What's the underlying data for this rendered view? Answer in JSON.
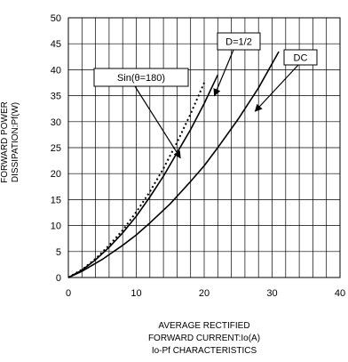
{
  "chart_data": {
    "type": "line",
    "title": "Io-Pf CHARACTERISTICS",
    "xlabel_lines": [
      "AVERAGE RECTIFIED",
      "FORWARD CURRENT:Io(A)"
    ],
    "ylabel_lines": [
      "FORWARD POWER",
      "DISSIPATION:Pf(W)"
    ],
    "xlim": [
      0,
      40
    ],
    "ylim": [
      0,
      50
    ],
    "x_ticks": [
      "0",
      "10",
      "20",
      "30",
      "40"
    ],
    "y_ticks": [
      "0",
      "5",
      "10",
      "15",
      "20",
      "25",
      "30",
      "35",
      "40",
      "45",
      "50"
    ],
    "grid": true,
    "series": [
      {
        "name": "DC",
        "style": "solid",
        "x": [
          0,
          2,
          5,
          8,
          10,
          12,
          15,
          18,
          20,
          22,
          25,
          28,
          31
        ],
        "y": [
          0,
          1.2,
          3.5,
          6.2,
          8.2,
          10.5,
          14.2,
          18.5,
          21.5,
          25,
          30.5,
          36.5,
          43.5
        ]
      },
      {
        "name": "D=1/2",
        "style": "solid",
        "x": [
          0,
          2,
          4,
          6,
          8,
          10,
          12,
          14,
          16,
          18,
          20,
          22
        ],
        "y": [
          0,
          1.4,
          3.4,
          5.8,
          8.6,
          11.8,
          15.5,
          19.5,
          24,
          28.5,
          33.5,
          39
        ]
      },
      {
        "name": "Sin(θ=180)",
        "style": "dotted",
        "x": [
          0,
          2,
          4,
          6,
          8,
          10,
          12,
          14,
          16,
          18,
          20
        ],
        "y": [
          0,
          1.5,
          3.6,
          6.2,
          9.1,
          12.6,
          16.5,
          21,
          26,
          31.5,
          37.5
        ]
      }
    ],
    "annotations": [
      {
        "text": "Sin(θ=180)",
        "points_to": [
          16.5,
          23
        ]
      },
      {
        "text": "D=1/2",
        "points_to": [
          21.5,
          35
        ]
      },
      {
        "text": "DC",
        "points_to": [
          27.5,
          32
        ]
      }
    ]
  }
}
